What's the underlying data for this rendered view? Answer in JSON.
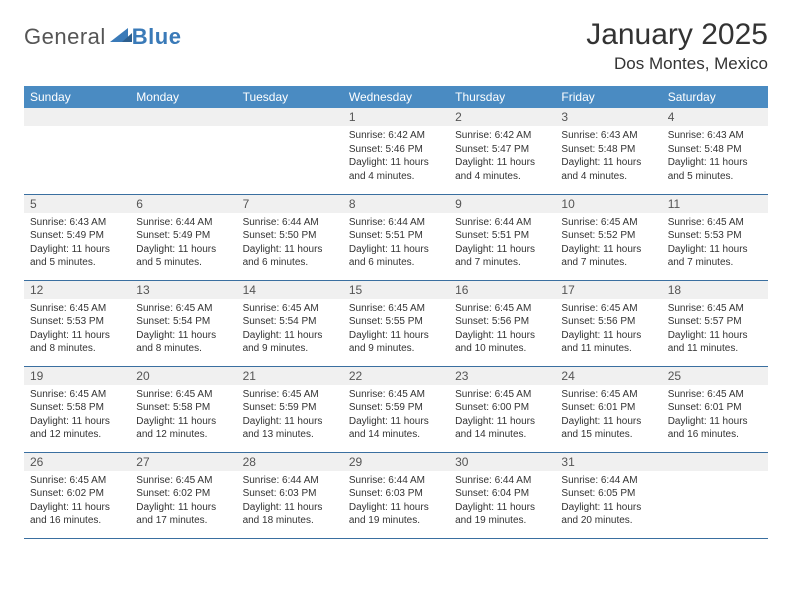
{
  "logo": {
    "part1": "General",
    "part2": "Blue"
  },
  "title": "January 2025",
  "location": "Dos Montes, Mexico",
  "colors": {
    "header_bg": "#4a8bc2",
    "header_text": "#ffffff",
    "daynum_bg": "#f0f0f0",
    "row_border": "#3a6fa0",
    "logo_gray": "#555555",
    "logo_blue": "#3a7ab8"
  },
  "fonts": {
    "title_size": 30,
    "location_size": 17,
    "dayheader_size": 12,
    "daynum_size": 12,
    "daytext_size": 10
  },
  "day_headers": [
    "Sunday",
    "Monday",
    "Tuesday",
    "Wednesday",
    "Thursday",
    "Friday",
    "Saturday"
  ],
  "weeks": [
    [
      {
        "n": "",
        "lines": []
      },
      {
        "n": "",
        "lines": []
      },
      {
        "n": "",
        "lines": []
      },
      {
        "n": "1",
        "lines": [
          "Sunrise: 6:42 AM",
          "Sunset: 5:46 PM",
          "Daylight: 11 hours and 4 minutes."
        ]
      },
      {
        "n": "2",
        "lines": [
          "Sunrise: 6:42 AM",
          "Sunset: 5:47 PM",
          "Daylight: 11 hours and 4 minutes."
        ]
      },
      {
        "n": "3",
        "lines": [
          "Sunrise: 6:43 AM",
          "Sunset: 5:48 PM",
          "Daylight: 11 hours and 4 minutes."
        ]
      },
      {
        "n": "4",
        "lines": [
          "Sunrise: 6:43 AM",
          "Sunset: 5:48 PM",
          "Daylight: 11 hours and 5 minutes."
        ]
      }
    ],
    [
      {
        "n": "5",
        "lines": [
          "Sunrise: 6:43 AM",
          "Sunset: 5:49 PM",
          "Daylight: 11 hours and 5 minutes."
        ]
      },
      {
        "n": "6",
        "lines": [
          "Sunrise: 6:44 AM",
          "Sunset: 5:49 PM",
          "Daylight: 11 hours and 5 minutes."
        ]
      },
      {
        "n": "7",
        "lines": [
          "Sunrise: 6:44 AM",
          "Sunset: 5:50 PM",
          "Daylight: 11 hours and 6 minutes."
        ]
      },
      {
        "n": "8",
        "lines": [
          "Sunrise: 6:44 AM",
          "Sunset: 5:51 PM",
          "Daylight: 11 hours and 6 minutes."
        ]
      },
      {
        "n": "9",
        "lines": [
          "Sunrise: 6:44 AM",
          "Sunset: 5:51 PM",
          "Daylight: 11 hours and 7 minutes."
        ]
      },
      {
        "n": "10",
        "lines": [
          "Sunrise: 6:45 AM",
          "Sunset: 5:52 PM",
          "Daylight: 11 hours and 7 minutes."
        ]
      },
      {
        "n": "11",
        "lines": [
          "Sunrise: 6:45 AM",
          "Sunset: 5:53 PM",
          "Daylight: 11 hours and 7 minutes."
        ]
      }
    ],
    [
      {
        "n": "12",
        "lines": [
          "Sunrise: 6:45 AM",
          "Sunset: 5:53 PM",
          "Daylight: 11 hours and 8 minutes."
        ]
      },
      {
        "n": "13",
        "lines": [
          "Sunrise: 6:45 AM",
          "Sunset: 5:54 PM",
          "Daylight: 11 hours and 8 minutes."
        ]
      },
      {
        "n": "14",
        "lines": [
          "Sunrise: 6:45 AM",
          "Sunset: 5:54 PM",
          "Daylight: 11 hours and 9 minutes."
        ]
      },
      {
        "n": "15",
        "lines": [
          "Sunrise: 6:45 AM",
          "Sunset: 5:55 PM",
          "Daylight: 11 hours and 9 minutes."
        ]
      },
      {
        "n": "16",
        "lines": [
          "Sunrise: 6:45 AM",
          "Sunset: 5:56 PM",
          "Daylight: 11 hours and 10 minutes."
        ]
      },
      {
        "n": "17",
        "lines": [
          "Sunrise: 6:45 AM",
          "Sunset: 5:56 PM",
          "Daylight: 11 hours and 11 minutes."
        ]
      },
      {
        "n": "18",
        "lines": [
          "Sunrise: 6:45 AM",
          "Sunset: 5:57 PM",
          "Daylight: 11 hours and 11 minutes."
        ]
      }
    ],
    [
      {
        "n": "19",
        "lines": [
          "Sunrise: 6:45 AM",
          "Sunset: 5:58 PM",
          "Daylight: 11 hours and 12 minutes."
        ]
      },
      {
        "n": "20",
        "lines": [
          "Sunrise: 6:45 AM",
          "Sunset: 5:58 PM",
          "Daylight: 11 hours and 12 minutes."
        ]
      },
      {
        "n": "21",
        "lines": [
          "Sunrise: 6:45 AM",
          "Sunset: 5:59 PM",
          "Daylight: 11 hours and 13 minutes."
        ]
      },
      {
        "n": "22",
        "lines": [
          "Sunrise: 6:45 AM",
          "Sunset: 5:59 PM",
          "Daylight: 11 hours and 14 minutes."
        ]
      },
      {
        "n": "23",
        "lines": [
          "Sunrise: 6:45 AM",
          "Sunset: 6:00 PM",
          "Daylight: 11 hours and 14 minutes."
        ]
      },
      {
        "n": "24",
        "lines": [
          "Sunrise: 6:45 AM",
          "Sunset: 6:01 PM",
          "Daylight: 11 hours and 15 minutes."
        ]
      },
      {
        "n": "25",
        "lines": [
          "Sunrise: 6:45 AM",
          "Sunset: 6:01 PM",
          "Daylight: 11 hours and 16 minutes."
        ]
      }
    ],
    [
      {
        "n": "26",
        "lines": [
          "Sunrise: 6:45 AM",
          "Sunset: 6:02 PM",
          "Daylight: 11 hours and 16 minutes."
        ]
      },
      {
        "n": "27",
        "lines": [
          "Sunrise: 6:45 AM",
          "Sunset: 6:02 PM",
          "Daylight: 11 hours and 17 minutes."
        ]
      },
      {
        "n": "28",
        "lines": [
          "Sunrise: 6:44 AM",
          "Sunset: 6:03 PM",
          "Daylight: 11 hours and 18 minutes."
        ]
      },
      {
        "n": "29",
        "lines": [
          "Sunrise: 6:44 AM",
          "Sunset: 6:03 PM",
          "Daylight: 11 hours and 19 minutes."
        ]
      },
      {
        "n": "30",
        "lines": [
          "Sunrise: 6:44 AM",
          "Sunset: 6:04 PM",
          "Daylight: 11 hours and 19 minutes."
        ]
      },
      {
        "n": "31",
        "lines": [
          "Sunrise: 6:44 AM",
          "Sunset: 6:05 PM",
          "Daylight: 11 hours and 20 minutes."
        ]
      },
      {
        "n": "",
        "lines": []
      }
    ]
  ]
}
